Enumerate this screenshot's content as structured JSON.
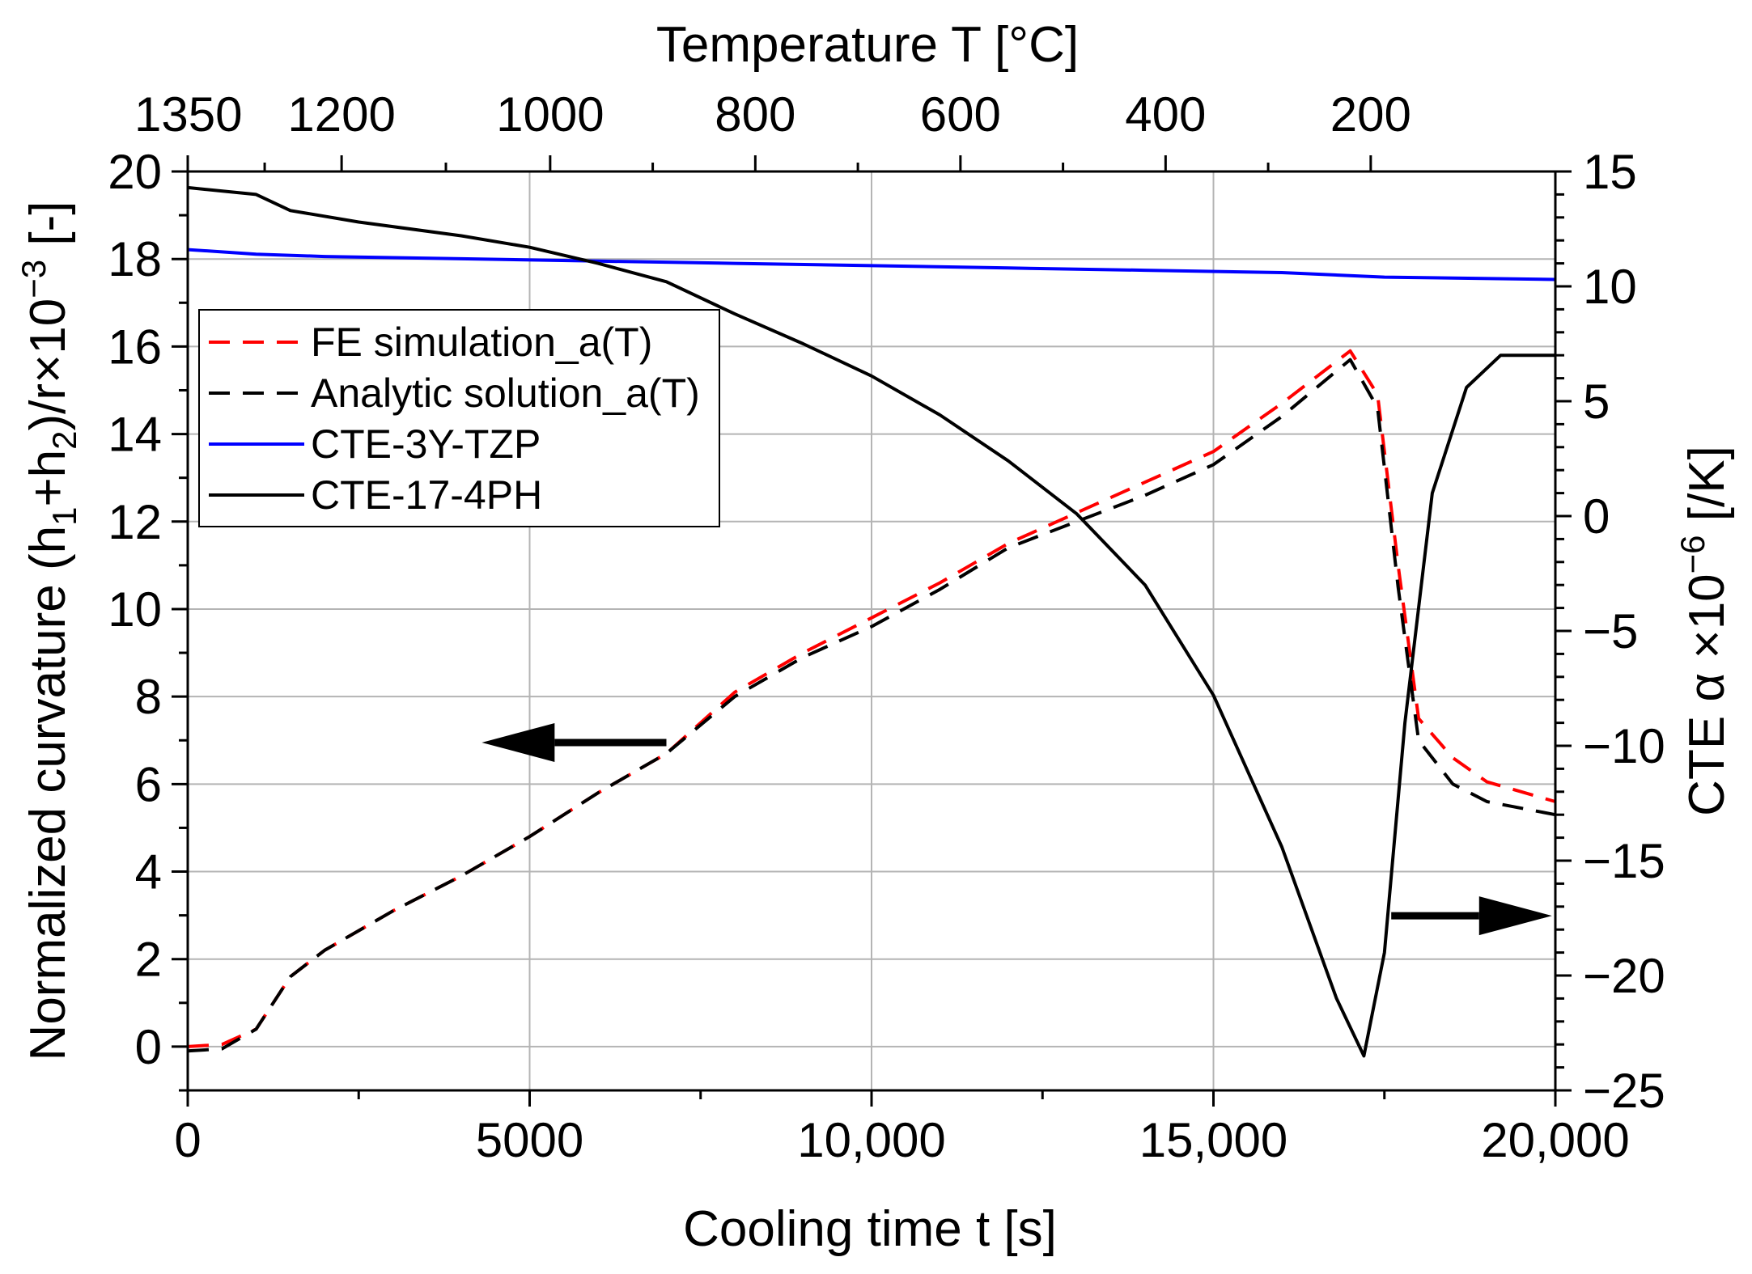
{
  "chart_data": {
    "type": "line",
    "top_axis": {
      "title": "Temperature T [°C]",
      "tick_labels": [
        "1350",
        "1200",
        "1000",
        "800",
        "600",
        "400",
        "200"
      ],
      "tick_positions_time_s": [
        0,
        2250,
        5300,
        8300,
        11300,
        14300,
        17300
      ]
    },
    "x_axis": {
      "title": "Cooling time t [s]",
      "range": [
        0,
        20000
      ],
      "ticks": [
        0,
        5000,
        10000,
        15000,
        20000
      ],
      "tick_labels": [
        "0",
        "5000",
        "10,000",
        "15,000",
        "20,000"
      ]
    },
    "y_left": {
      "title_main": "Normalized curvature (h",
      "sub1": "1",
      "mid": "+h",
      "sub2": "2",
      "after": ")/r×10",
      "sup": "−3",
      "end": " [-]",
      "range": [
        -1,
        20
      ],
      "ticks": [
        0,
        2,
        4,
        6,
        8,
        10,
        12,
        14,
        16,
        18,
        20
      ],
      "tick_labels": [
        "0",
        "2",
        "4",
        "6",
        "8",
        "10",
        "12",
        "14",
        "16",
        "18",
        "20"
      ]
    },
    "y_right": {
      "title_main": "CTE α ×10",
      "sup": "−6",
      "end": " [/K]",
      "range": [
        -25,
        15
      ],
      "ticks": [
        -25,
        -20,
        -15,
        -10,
        -5,
        0,
        5,
        10,
        15
      ],
      "tick_labels": [
        "−25",
        "−20",
        "−15",
        "−10",
        "−5",
        "0",
        "5",
        "10",
        "15"
      ]
    },
    "grid": true,
    "legend_position": "upper-left",
    "series": [
      {
        "name": "FE simulation_a(T)",
        "color": "#ff0000",
        "style": "dashed",
        "axis": "left",
        "points": [
          [
            0,
            0
          ],
          [
            500,
            0.05
          ],
          [
            1000,
            0.4
          ],
          [
            1500,
            1.6
          ],
          [
            2000,
            2.2
          ],
          [
            3000,
            3.1
          ],
          [
            4000,
            3.9
          ],
          [
            5000,
            4.8
          ],
          [
            6000,
            5.8
          ],
          [
            7000,
            6.7
          ],
          [
            8000,
            8.1
          ],
          [
            9000,
            9.0
          ],
          [
            10000,
            9.8
          ],
          [
            11000,
            10.6
          ],
          [
            12000,
            11.5
          ],
          [
            13000,
            12.2
          ],
          [
            14000,
            12.9
          ],
          [
            15000,
            13.6
          ],
          [
            16000,
            14.7
          ],
          [
            17000,
            15.9
          ],
          [
            17400,
            14.9
          ],
          [
            17700,
            11.0
          ],
          [
            18000,
            7.5
          ],
          [
            18500,
            6.6
          ],
          [
            19000,
            6.05
          ],
          [
            20000,
            5.6
          ]
        ]
      },
      {
        "name": "Analytic solution_a(T)",
        "color": "#000000",
        "style": "dashed",
        "axis": "left",
        "points": [
          [
            0,
            -0.1
          ],
          [
            500,
            -0.05
          ],
          [
            1000,
            0.4
          ],
          [
            1500,
            1.6
          ],
          [
            2000,
            2.2
          ],
          [
            3000,
            3.1
          ],
          [
            4000,
            3.9
          ],
          [
            5000,
            4.8
          ],
          [
            6000,
            5.8
          ],
          [
            7000,
            6.7
          ],
          [
            8000,
            8.0
          ],
          [
            9000,
            8.9
          ],
          [
            10000,
            9.6
          ],
          [
            11000,
            10.45
          ],
          [
            12000,
            11.4
          ],
          [
            13000,
            12.0
          ],
          [
            14000,
            12.6
          ],
          [
            15000,
            13.3
          ],
          [
            16000,
            14.4
          ],
          [
            17000,
            15.7
          ],
          [
            17400,
            14.6
          ],
          [
            17700,
            10.5
          ],
          [
            18000,
            7.0
          ],
          [
            18500,
            6.0
          ],
          [
            19000,
            5.6
          ],
          [
            20000,
            5.3
          ]
        ]
      },
      {
        "name": "CTE-3Y-TZP",
        "color": "#0000ff",
        "style": "solid",
        "axis": "right",
        "points": [
          [
            0,
            11.6
          ],
          [
            1000,
            11.4
          ],
          [
            2000,
            11.3
          ],
          [
            4000,
            11.2
          ],
          [
            6000,
            11.1
          ],
          [
            8000,
            11.0
          ],
          [
            10000,
            10.9
          ],
          [
            12000,
            10.8
          ],
          [
            14000,
            10.7
          ],
          [
            16000,
            10.6
          ],
          [
            17500,
            10.4
          ],
          [
            20000,
            10.3
          ]
        ]
      },
      {
        "name": "CTE-17-4PH",
        "color": "#000000",
        "style": "solid",
        "axis": "right",
        "points": [
          [
            0,
            14.3
          ],
          [
            1000,
            14.0
          ],
          [
            1500,
            13.3
          ],
          [
            2500,
            12.8
          ],
          [
            4000,
            12.2
          ],
          [
            5000,
            11.7
          ],
          [
            6000,
            11.0
          ],
          [
            7000,
            10.2
          ],
          [
            8000,
            8.8
          ],
          [
            9000,
            7.5
          ],
          [
            10000,
            6.1
          ],
          [
            11000,
            4.4
          ],
          [
            12000,
            2.4
          ],
          [
            13000,
            0.1
          ],
          [
            14000,
            -3.0
          ],
          [
            15000,
            -7.8
          ],
          [
            16000,
            -14.4
          ],
          [
            16800,
            -21.0
          ],
          [
            17200,
            -23.5
          ],
          [
            17500,
            -19.0
          ],
          [
            17800,
            -9.0
          ],
          [
            18200,
            1.0
          ],
          [
            18700,
            5.6
          ],
          [
            19200,
            7.0
          ],
          [
            20000,
            7.0
          ]
        ]
      }
    ],
    "annotations": [
      {
        "type": "arrow",
        "direction": "left",
        "meaning": "curves read on left axis",
        "from_time_s": 7000,
        "to_time_s": 4300,
        "level_left": 6.95
      },
      {
        "type": "arrow",
        "direction": "right",
        "meaning": "curves read on right axis",
        "from_time_s": 17600,
        "to_time_s": 19950,
        "level_right": -17.4
      }
    ]
  }
}
